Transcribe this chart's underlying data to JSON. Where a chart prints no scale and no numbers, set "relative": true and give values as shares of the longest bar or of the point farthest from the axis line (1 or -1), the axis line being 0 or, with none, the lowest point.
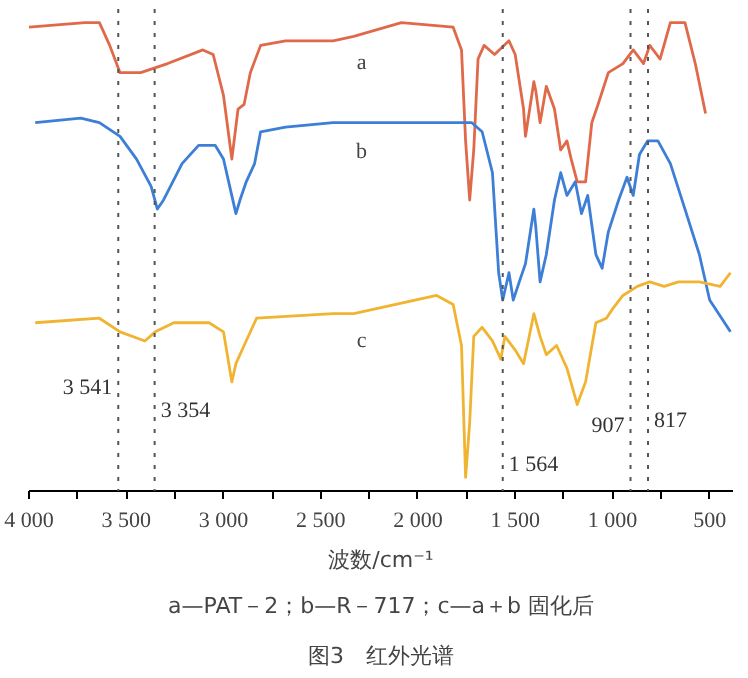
{
  "chart_data": {
    "type": "line",
    "relative": true,
    "xlabel": "波数/cm⁻¹",
    "xlim": [
      4000,
      380
    ],
    "xticks": [
      {
        "value": 4000,
        "label": "4 000"
      },
      {
        "value": 3750,
        "label": null
      },
      {
        "value": 3500,
        "label": "3 500"
      },
      {
        "value": 3250,
        "label": null
      },
      {
        "value": 3000,
        "label": "3 000"
      },
      {
        "value": 2750,
        "label": null
      },
      {
        "value": 2500,
        "label": "2 500"
      },
      {
        "value": 2250,
        "label": null
      },
      {
        "value": 2000,
        "label": "2 000"
      },
      {
        "value": 1750,
        "label": null
      },
      {
        "value": 1500,
        "label": "1 500"
      },
      {
        "value": 1250,
        "label": null
      },
      {
        "value": 1000,
        "label": "1 000"
      },
      {
        "value": 750,
        "label": null
      },
      {
        "value": 500,
        "label": "500"
      }
    ],
    "tick_labels": "x",
    "grid": false,
    "marker": "none",
    "line_style": "solid",
    "series": [
      {
        "name": "a",
        "color": "#e0694a",
        "x": [
          4000,
          3713,
          3638,
          3585,
          3532,
          3426,
          3287,
          3106,
          3053,
          3000,
          2957,
          2925,
          2894,
          2862,
          2809,
          2681,
          2436,
          2330,
          2085,
          1819,
          1776,
          1755,
          1734,
          1713,
          1691,
          1660,
          1606,
          1532,
          1500,
          1457,
          1447,
          1404,
          1394,
          1372,
          1340,
          1298,
          1266,
          1234,
          1212,
          1181,
          1138,
          1106,
          1074,
          1021,
          946,
          893,
          840,
          808,
          755,
          702,
          627,
          574,
          521
        ],
        "values": [
          0.99,
          1.0,
          1.0,
          0.95,
          0.89,
          0.89,
          0.91,
          0.94,
          0.93,
          0.84,
          0.7,
          0.81,
          0.82,
          0.89,
          0.95,
          0.96,
          0.96,
          0.97,
          1.0,
          0.99,
          0.94,
          0.74,
          0.61,
          0.72,
          0.92,
          0.95,
          0.93,
          0.96,
          0.93,
          0.81,
          0.75,
          0.87,
          0.85,
          0.78,
          0.86,
          0.81,
          0.72,
          0.74,
          0.7,
          0.65,
          0.65,
          0.78,
          0.82,
          0.89,
          0.91,
          0.94,
          0.91,
          0.95,
          0.92,
          1.0,
          1.0,
          0.91,
          0.8
        ]
      },
      {
        "name": "b",
        "color": "#3d7fd6",
        "x": [
          3968,
          3734,
          3638,
          3532,
          3447,
          3372,
          3340,
          3308,
          3213,
          3128,
          3042,
          3000,
          2968,
          2936,
          2915,
          2883,
          2840,
          2809,
          2681,
          2436,
          2330,
          1723,
          1670,
          1617,
          1585,
          1564,
          1532,
          1510,
          1479,
          1447,
          1404,
          1394,
          1372,
          1340,
          1298,
          1266,
          1234,
          1191,
          1159,
          1127,
          1085,
          1053,
          1021,
          968,
          925,
          893,
          861,
          819,
          766,
          702,
          627,
          553,
          500,
          393
        ],
        "values": [
          0.78,
          0.79,
          0.78,
          0.75,
          0.7,
          0.64,
          0.59,
          0.61,
          0.69,
          0.73,
          0.73,
          0.7,
          0.64,
          0.58,
          0.61,
          0.65,
          0.69,
          0.76,
          0.77,
          0.78,
          0.78,
          0.78,
          0.76,
          0.67,
          0.45,
          0.39,
          0.45,
          0.39,
          0.43,
          0.47,
          0.59,
          0.55,
          0.43,
          0.49,
          0.61,
          0.67,
          0.62,
          0.65,
          0.58,
          0.62,
          0.49,
          0.46,
          0.54,
          0.61,
          0.66,
          0.62,
          0.71,
          0.74,
          0.74,
          0.69,
          0.59,
          0.49,
          0.39,
          0.32
        ]
      },
      {
        "name": "c",
        "color": "#f0b432",
        "x": [
          3968,
          3638,
          3532,
          3404,
          3351,
          3255,
          3074,
          3000,
          2957,
          2936,
          2894,
          2830,
          2436,
          2330,
          1904,
          1819,
          1776,
          1755,
          1734,
          1713,
          1670,
          1617,
          1574,
          1553,
          1500,
          1457,
          1404,
          1372,
          1340,
          1287,
          1234,
          1181,
          1138,
          1085,
          1031,
          1000,
          946,
          872,
          808,
          734,
          660,
          553,
          446,
          393
        ],
        "values": [
          0.34,
          0.35,
          0.32,
          0.3,
          0.32,
          0.34,
          0.34,
          0.32,
          0.21,
          0.25,
          0.29,
          0.35,
          0.36,
          0.36,
          0.4,
          0.38,
          0.29,
          0.0,
          0.12,
          0.31,
          0.33,
          0.3,
          0.26,
          0.31,
          0.28,
          0.25,
          0.36,
          0.31,
          0.27,
          0.29,
          0.24,
          0.16,
          0.21,
          0.34,
          0.35,
          0.37,
          0.4,
          0.42,
          0.43,
          0.42,
          0.43,
          0.43,
          0.42,
          0.45
        ]
      }
    ],
    "ref_lines": [
      {
        "axis": "x",
        "value": 3541,
        "label": "3 541",
        "color": "#555555",
        "line_style": "dotted"
      },
      {
        "axis": "x",
        "value": 3354,
        "label": "3 354",
        "color": "#555555",
        "line_style": "dotted"
      },
      {
        "axis": "x",
        "value": 1564,
        "label": "1 564",
        "color": "#555555",
        "line_style": "dotted"
      },
      {
        "axis": "x",
        "value": 907,
        "label": "907",
        "color": "#555555",
        "line_style": "dotted"
      },
      {
        "axis": "x",
        "value": 817,
        "label": "817",
        "color": "#555555",
        "line_style": "dotted"
      }
    ],
    "annotations": [
      "a—PAT－2；b—R－717；c—a＋b 固化后",
      "图3　红外光谱"
    ]
  }
}
